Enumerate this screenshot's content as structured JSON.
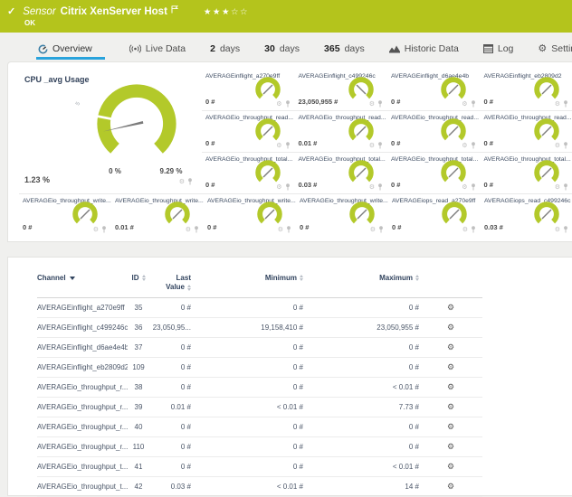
{
  "titlebar": {
    "kind": "Sensor",
    "name": "Citrix XenServer Host",
    "status": "OK",
    "stars_filled": "★★★",
    "stars_empty": "☆☆"
  },
  "tabs": [
    {
      "label": "Overview"
    },
    {
      "label": "Live Data"
    },
    {
      "num": "2",
      "label": "days"
    },
    {
      "num": "30",
      "label": "days"
    },
    {
      "num": "365",
      "label": "days"
    },
    {
      "label": "Historic Data"
    },
    {
      "label": "Log"
    },
    {
      "label": "Settings"
    }
  ],
  "main_gauge": {
    "title": "CPU _avg Usage",
    "value": "1.23 %",
    "min": "0 %",
    "max": "9.29 %",
    "tick": "5"
  },
  "gauges": {
    "grid": [
      {
        "title": "AVERAGEinflight_a270e9ff",
        "value": "0 #",
        "needle": "sw"
      },
      {
        "title": "AVERAGEinflight_c499246c",
        "value": "23,050,955 #",
        "needle": "se"
      },
      {
        "title": "AVERAGEinflight_d6ae4e4b",
        "value": "0 #",
        "needle": "sw"
      },
      {
        "title": "AVERAGEinflight_eb2809d2",
        "value": "0 #",
        "needle": "sw"
      },
      {
        "title": "AVERAGEio_throughput_read...",
        "value": "0 #",
        "needle": "sw"
      },
      {
        "title": "AVERAGEio_throughput_read...",
        "value": "0.01 #",
        "needle": "sw"
      },
      {
        "title": "AVERAGEio_throughput_read...",
        "value": "0 #",
        "needle": "sw"
      },
      {
        "title": "AVERAGEio_throughput_read...",
        "value": "0 #",
        "needle": "sw"
      },
      {
        "title": "AVERAGEio_throughput_total...",
        "value": "0 #",
        "needle": "sw"
      },
      {
        "title": "AVERAGEio_throughput_total...",
        "value": "0.03 #",
        "needle": "sw"
      },
      {
        "title": "AVERAGEio_throughput_total...",
        "value": "0 #",
        "needle": "sw"
      },
      {
        "title": "AVERAGEio_throughput_total...",
        "value": "0 #",
        "needle": "sw"
      }
    ],
    "bottom": [
      {
        "title": "AVERAGEio_throughput_write...",
        "value": "0 #",
        "needle": "sw"
      },
      {
        "title": "AVERAGEio_throughput_write...",
        "value": "0.01 #",
        "needle": "sw"
      },
      {
        "title": "AVERAGEio_throughput_write...",
        "value": "0 #",
        "needle": "sw"
      },
      {
        "title": "AVERAGEio_throughput_write...",
        "value": "0 #",
        "needle": "sw"
      },
      {
        "title": "AVERAGEiops_read_a270e9ff",
        "value": "0 #",
        "needle": "sw"
      },
      {
        "title": "AVERAGEiops_read_c499246c",
        "value": "0.03 #",
        "needle": "sw"
      }
    ]
  },
  "table": {
    "headers": {
      "channel": "Channel",
      "id": "ID",
      "last1": "Last",
      "last2": "Value",
      "min": "Minimum",
      "max": "Maximum"
    },
    "rows": [
      {
        "channel": "AVERAGEinflight_a270e9ff",
        "id": "35",
        "last": "0 #",
        "min": "0 #",
        "max": "0 #"
      },
      {
        "channel": "AVERAGEinflight_c499246c",
        "id": "36",
        "last": "23,050,95...",
        "min": "19,158,410 #",
        "max": "23,050,955 #"
      },
      {
        "channel": "AVERAGEinflight_d6ae4e4b",
        "id": "37",
        "last": "0 #",
        "min": "0 #",
        "max": "0 #"
      },
      {
        "channel": "AVERAGEinflight_eb2809d2",
        "id": "109",
        "last": "0 #",
        "min": "0 #",
        "max": "0 #"
      },
      {
        "channel": "AVERAGEio_throughput_r...",
        "id": "38",
        "last": "0 #",
        "min": "0 #",
        "max": "< 0.01 #"
      },
      {
        "channel": "AVERAGEio_throughput_r...",
        "id": "39",
        "last": "0.01 #",
        "min": "< 0.01 #",
        "max": "7.73 #"
      },
      {
        "channel": "AVERAGEio_throughput_r...",
        "id": "40",
        "last": "0 #",
        "min": "0 #",
        "max": "0 #"
      },
      {
        "channel": "AVERAGEio_throughput_r...",
        "id": "110",
        "last": "0 #",
        "min": "0 #",
        "max": "0 #"
      },
      {
        "channel": "AVERAGEio_throughput_t...",
        "id": "41",
        "last": "0 #",
        "min": "0 #",
        "max": "< 0.01 #"
      },
      {
        "channel": "AVERAGEio_throughput_t...",
        "id": "42",
        "last": "0.03 #",
        "min": "< 0.01 #",
        "max": "14 #"
      }
    ]
  },
  "icons": {
    "check": "✓",
    "gear": "⚙"
  },
  "colors": {
    "brand_green": "#b4c41c",
    "gauge_green": "#b3c92a",
    "accent_blue": "#29a3dc",
    "header_navy": "#31435e",
    "status_ok": "#ffffff"
  }
}
